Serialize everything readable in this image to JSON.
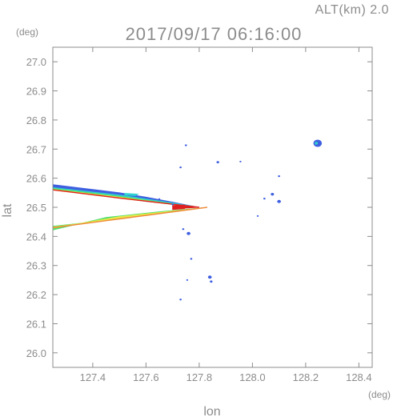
{
  "header": {
    "altitude_label": "ALT(km) 2.0",
    "datetime": "2017/09/17 06:16:00"
  },
  "chart_data": {
    "type": "heatmap",
    "title": "2017/09/17 06:16:00",
    "xlabel": "lon",
    "ylabel": "lat",
    "x_unit": "(deg)",
    "y_unit": "(deg)",
    "xlim": [
      127.25,
      128.45
    ],
    "ylim": [
      25.95,
      27.05
    ],
    "x_ticks": [
      127.4,
      127.6,
      127.8,
      128.0,
      128.2,
      128.4
    ],
    "x_tick_labels": [
      "127.4",
      "127.6",
      "127.8",
      "128.0",
      "128.2",
      "128.4"
    ],
    "y_ticks": [
      26.0,
      26.1,
      26.2,
      26.3,
      26.4,
      26.5,
      26.6,
      26.7,
      26.8,
      26.9,
      27.0
    ],
    "y_tick_labels": [
      "26.0",
      "26.1",
      "26.2",
      "26.3",
      "26.4",
      "26.5",
      "26.6",
      "26.7",
      "26.8",
      "26.9",
      "27.0"
    ],
    "grid": false,
    "colors": {
      "axis": "#8c8c8c",
      "weak": "#3f5fe0",
      "cyan": "#2fd0d0",
      "green": "#4fe06f",
      "yellow": "#e8e84a",
      "orange": "#f08a3a",
      "red": "#e02020"
    },
    "features": [
      {
        "kind": "band",
        "color": "#3f5fe0",
        "points": [
          [
            127.25,
            26.578
          ],
          [
            127.5,
            26.55
          ],
          [
            127.6,
            26.535
          ],
          [
            127.7,
            26.518
          ],
          [
            127.78,
            26.503
          ],
          [
            127.6,
            26.52
          ],
          [
            127.4,
            26.545
          ],
          [
            127.25,
            26.562
          ]
        ]
      },
      {
        "kind": "band",
        "color": "#2fd0d0",
        "points": [
          [
            127.25,
            26.568
          ],
          [
            127.5,
            26.542
          ],
          [
            127.7,
            26.515
          ],
          [
            127.8,
            26.5
          ],
          [
            127.6,
            26.524
          ],
          [
            127.4,
            26.548
          ],
          [
            127.25,
            26.564
          ]
        ]
      },
      {
        "kind": "band",
        "color": "#4fe06f",
        "points": [
          [
            127.25,
            26.565
          ],
          [
            127.5,
            26.538
          ],
          [
            127.7,
            26.512
          ],
          [
            127.8,
            26.5
          ],
          [
            127.55,
            26.528
          ],
          [
            127.25,
            26.561
          ]
        ]
      },
      {
        "kind": "band",
        "color": "#e8e84a",
        "points": [
          [
            127.25,
            26.562
          ],
          [
            127.5,
            26.535
          ],
          [
            127.78,
            26.501
          ],
          [
            127.5,
            26.531
          ],
          [
            127.25,
            26.559
          ]
        ]
      },
      {
        "kind": "line",
        "color": "#e02020",
        "points": [
          [
            127.25,
            26.56
          ],
          [
            127.5,
            26.532
          ],
          [
            127.8,
            26.5
          ]
        ]
      },
      {
        "kind": "band",
        "color": "#4fe06f",
        "points": [
          [
            127.25,
            26.435
          ],
          [
            127.45,
            26.455
          ],
          [
            127.65,
            26.478
          ],
          [
            127.83,
            26.5
          ],
          [
            127.65,
            26.485
          ],
          [
            127.45,
            26.465
          ],
          [
            127.25,
            26.422
          ]
        ]
      },
      {
        "kind": "band",
        "color": "#e8e84a",
        "points": [
          [
            127.25,
            26.432
          ],
          [
            127.5,
            26.462
          ],
          [
            127.8,
            26.497
          ],
          [
            127.5,
            26.468
          ],
          [
            127.25,
            26.428
          ]
        ]
      },
      {
        "kind": "line",
        "color": "#f08a3a",
        "points": [
          [
            127.25,
            26.43
          ],
          [
            127.5,
            26.46
          ],
          [
            127.83,
            26.5
          ]
        ]
      },
      {
        "kind": "band",
        "color": "#e02020",
        "points": [
          [
            127.7,
            26.492
          ],
          [
            127.745,
            26.495
          ],
          [
            127.745,
            26.508
          ],
          [
            127.7,
            26.506
          ]
        ]
      },
      {
        "kind": "band",
        "color": "#e02020",
        "points": [
          [
            127.745,
            26.497
          ],
          [
            127.8,
            26.5
          ],
          [
            127.745,
            26.504
          ]
        ]
      },
      {
        "kind": "band",
        "color": "#2fd0d0",
        "points": [
          [
            127.52,
            26.548
          ],
          [
            127.57,
            26.545
          ],
          [
            127.56,
            26.54
          ],
          [
            127.52,
            26.542
          ]
        ]
      },
      {
        "kind": "blob",
        "color": "#3f5fe0",
        "lon": 128.245,
        "lat": 26.72,
        "r": 0.016
      },
      {
        "kind": "blob",
        "color": "#2fd0d0",
        "lon": 128.24,
        "lat": 26.72,
        "r": 0.006
      },
      {
        "kind": "blob",
        "color": "#3f5fe0",
        "lon": 127.75,
        "lat": 26.713,
        "r": 0.004
      },
      {
        "kind": "blob",
        "color": "#3f5fe0",
        "lon": 127.73,
        "lat": 26.637,
        "r": 0.004
      },
      {
        "kind": "blob",
        "color": "#3f5fe0",
        "lon": 127.87,
        "lat": 26.655,
        "r": 0.005
      },
      {
        "kind": "blob",
        "color": "#3f5fe0",
        "lon": 127.955,
        "lat": 26.657,
        "r": 0.003
      },
      {
        "kind": "blob",
        "color": "#3f5fe0",
        "lon": 128.1,
        "lat": 26.607,
        "r": 0.004
      },
      {
        "kind": "blob",
        "color": "#3f5fe0",
        "lon": 128.075,
        "lat": 26.545,
        "r": 0.006
      },
      {
        "kind": "blob",
        "color": "#3f5fe0",
        "lon": 128.1,
        "lat": 26.52,
        "r": 0.007
      },
      {
        "kind": "blob",
        "color": "#3f5fe0",
        "lon": 128.045,
        "lat": 26.53,
        "r": 0.004
      },
      {
        "kind": "blob",
        "color": "#3f5fe0",
        "lon": 127.76,
        "lat": 26.41,
        "r": 0.007
      },
      {
        "kind": "blob",
        "color": "#3f5fe0",
        "lon": 127.74,
        "lat": 26.425,
        "r": 0.004
      },
      {
        "kind": "blob",
        "color": "#3f5fe0",
        "lon": 127.77,
        "lat": 26.323,
        "r": 0.004
      },
      {
        "kind": "blob",
        "color": "#3f5fe0",
        "lon": 127.84,
        "lat": 26.26,
        "r": 0.007
      },
      {
        "kind": "blob",
        "color": "#3f5fe0",
        "lon": 127.845,
        "lat": 26.245,
        "r": 0.005
      },
      {
        "kind": "blob",
        "color": "#3f5fe0",
        "lon": 127.755,
        "lat": 26.25,
        "r": 0.003
      },
      {
        "kind": "blob",
        "color": "#3f5fe0",
        "lon": 127.73,
        "lat": 26.183,
        "r": 0.004
      },
      {
        "kind": "blob",
        "color": "#3f5fe0",
        "lon": 128.02,
        "lat": 26.47,
        "r": 0.003
      },
      {
        "kind": "blob",
        "color": "#3f5fe0",
        "lon": 127.7,
        "lat": 26.51,
        "r": 0.004
      },
      {
        "kind": "blob",
        "color": "#3f5fe0",
        "lon": 127.65,
        "lat": 26.528,
        "r": 0.003
      }
    ]
  }
}
